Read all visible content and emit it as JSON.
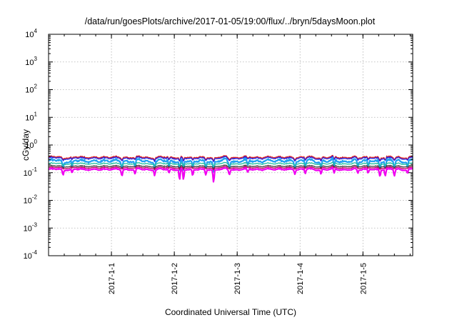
{
  "chart_data": {
    "type": "line",
    "title": "/data/run/goesPlots/archive/2017-01-05/19:00/flux/../bryn/5daysMoon.plot",
    "xlabel": "Coordinated Universal Time (UTC)",
    "ylabel": "cGy/day",
    "yscale": "log",
    "ylim": [
      0.0001,
      10000
    ],
    "y_ticks": [
      {
        "base": "10",
        "exp": "-4"
      },
      {
        "base": "10",
        "exp": "-3"
      },
      {
        "base": "10",
        "exp": "-2"
      },
      {
        "base": "10",
        "exp": "-1"
      },
      {
        "base": "10",
        "exp": "0"
      },
      {
        "base": "10",
        "exp": "1"
      },
      {
        "base": "10",
        "exp": "2"
      },
      {
        "base": "10",
        "exp": "3"
      },
      {
        "base": "10",
        "exp": "4"
      }
    ],
    "xlim": [
      "2016-12-31T00:00",
      "2017-01-05T19:00"
    ],
    "x_ticks": [
      {
        "label": "2017-1-1",
        "date": "2017-01-01T00:00"
      },
      {
        "label": "2017-1-2",
        "date": "2017-01-02T00:00"
      },
      {
        "label": "2017-1-3",
        "date": "2017-01-03T00:00"
      },
      {
        "label": "2017-1-4",
        "date": "2017-01-04T00:00"
      },
      {
        "label": "2017-1-5",
        "date": "2017-01-05T00:00"
      }
    ],
    "grid": true,
    "colors": [
      "#e02020",
      "#2020e0",
      "#20a0f0",
      "#20c0a0",
      "#404040",
      "#c00060",
      "#f000f0"
    ],
    "series": [
      {
        "color": "#e02020",
        "typical": 0.36,
        "range": [
          0.28,
          0.45
        ]
      },
      {
        "color": "#2020e0",
        "typical": 0.33,
        "range": [
          0.26,
          0.42
        ]
      },
      {
        "color": "#20a0f0",
        "typical": 0.26,
        "range": [
          0.15,
          0.38
        ]
      },
      {
        "color": "#20c0a0",
        "typical": 0.21,
        "range": [
          0.17,
          0.25
        ]
      },
      {
        "color": "#404040",
        "typical": 0.17,
        "range": [
          0.14,
          0.2
        ]
      },
      {
        "color": "#c00060",
        "typical": 0.15,
        "range": [
          0.12,
          0.18
        ]
      },
      {
        "color": "#f000f0",
        "typical": 0.13,
        "range": [
          0.035,
          0.16
        ]
      }
    ],
    "dips": [
      {
        "date": "2016-12-31T05:30",
        "min": 0.075
      },
      {
        "date": "2016-12-31T09:00",
        "min": 0.09
      },
      {
        "date": "2017-01-01T04:00",
        "min": 0.07
      },
      {
        "date": "2017-01-01T09:00",
        "min": 0.08
      },
      {
        "date": "2017-01-01T16:30",
        "min": 0.08
      },
      {
        "date": "2017-01-01T22:00",
        "min": 0.09
      },
      {
        "date": "2017-01-02T02:00",
        "min": 0.05
      },
      {
        "date": "2017-01-02T03:30",
        "min": 0.05
      },
      {
        "date": "2017-01-02T07:00",
        "min": 0.07
      },
      {
        "date": "2017-01-02T12:00",
        "min": 0.08
      },
      {
        "date": "2017-01-02T15:00",
        "min": 0.04
      },
      {
        "date": "2017-01-02T21:00",
        "min": 0.08
      },
      {
        "date": "2017-01-03T04:00",
        "min": 0.09
      },
      {
        "date": "2017-01-03T22:00",
        "min": 0.09
      },
      {
        "date": "2017-01-04T02:00",
        "min": 0.09
      },
      {
        "date": "2017-01-04T08:00",
        "min": 0.09
      },
      {
        "date": "2017-01-04T13:00",
        "min": 0.09
      },
      {
        "date": "2017-01-04T22:00",
        "min": 0.09
      },
      {
        "date": "2017-01-05T02:00",
        "min": 0.09
      },
      {
        "date": "2017-01-05T06:30",
        "min": 0.07
      },
      {
        "date": "2017-01-05T08:30",
        "min": 0.07
      },
      {
        "date": "2017-01-05T12:00",
        "min": 0.07
      },
      {
        "date": "2017-01-05T17:00",
        "min": 0.09
      }
    ]
  }
}
